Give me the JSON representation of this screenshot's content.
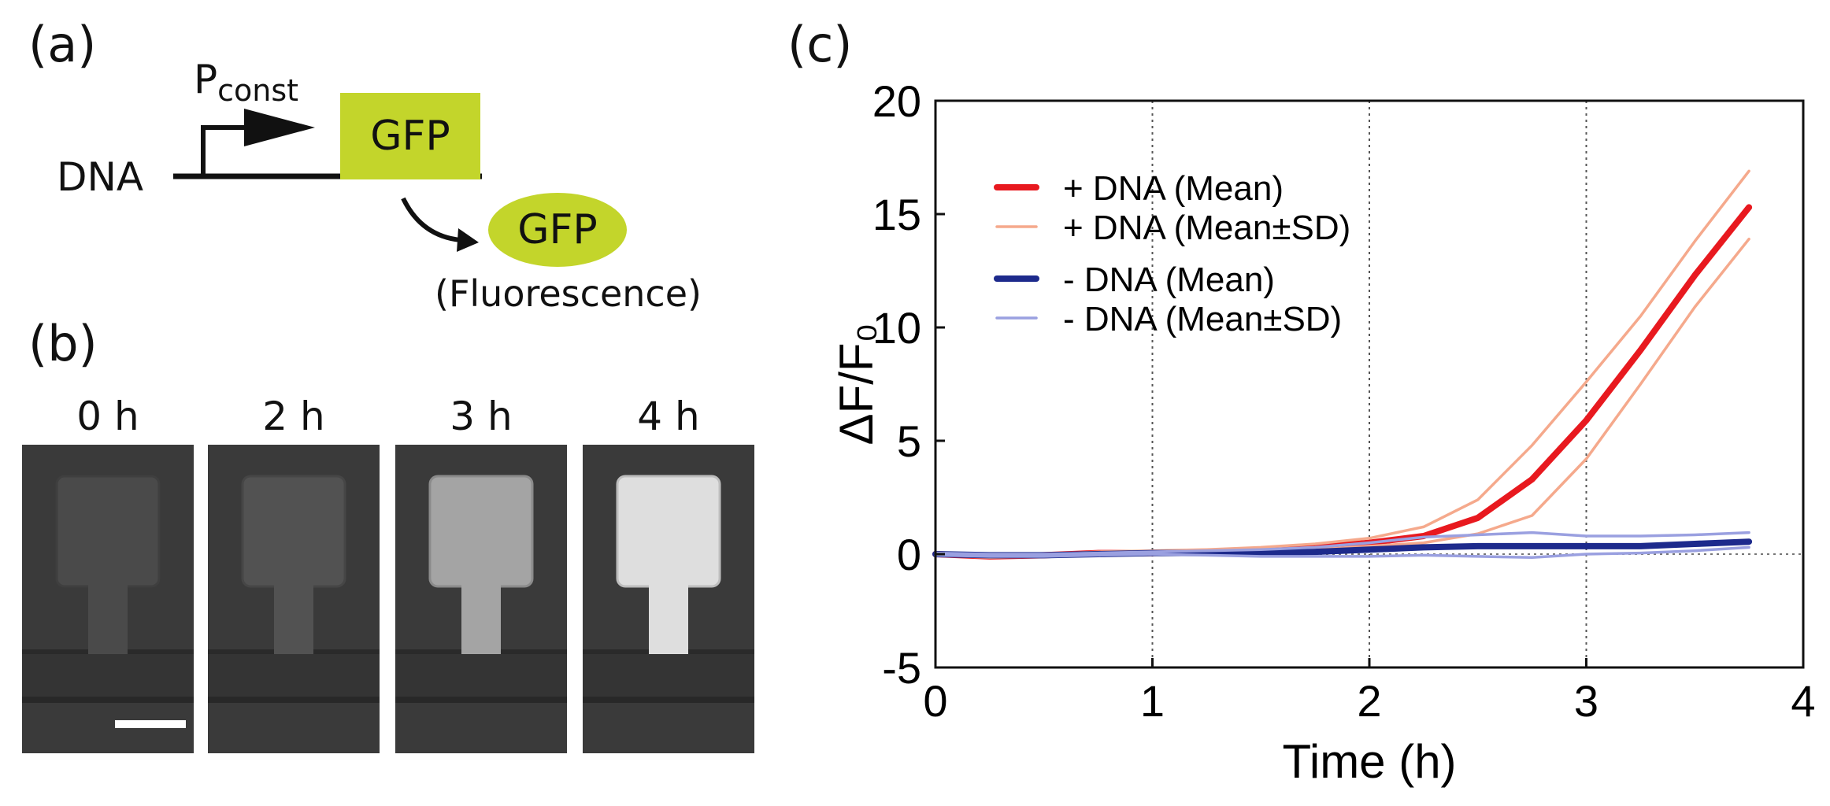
{
  "panels": {
    "a_label": "(a)",
    "b_label": "(b)",
    "c_label": "(c)"
  },
  "schematic": {
    "dna_label": "DNA",
    "promoter_p": "P",
    "promoter_sub": "const",
    "gene_label": "GFP",
    "protein_label": "GFP",
    "fluorescence_label": "(Fluorescence)",
    "gfp_color": "#c3d52b"
  },
  "micrographs": {
    "times": [
      "0 h",
      "2 h",
      "3 h",
      "4 h"
    ],
    "brightness": [
      0.0,
      0.05,
      0.55,
      0.9
    ]
  },
  "chart_data": {
    "type": "line",
    "title": "",
    "xlabel": "Time (h)",
    "ylabel": "ΔF/F₀",
    "xlim": [
      0,
      4
    ],
    "ylim": [
      -5,
      20
    ],
    "xticks": [
      "0",
      "1",
      "2",
      "3",
      "4"
    ],
    "yticks": [
      "20",
      "15",
      "10",
      "5",
      "0",
      "-5"
    ],
    "x": [
      0,
      0.25,
      0.5,
      0.75,
      1.0,
      1.25,
      1.5,
      1.75,
      2.0,
      2.25,
      2.5,
      2.75,
      3.0,
      3.25,
      3.5,
      3.75
    ],
    "series": [
      {
        "name": "+ DNA (Mean)",
        "color": "#e8191f",
        "width": 8,
        "values": [
          0,
          -0.1,
          -0.05,
          0.05,
          0.05,
          0.1,
          0.2,
          0.3,
          0.5,
          0.8,
          1.6,
          3.3,
          5.9,
          9.0,
          12.3,
          15.3
        ]
      },
      {
        "name": "+ DNA (Mean±SD)",
        "color": "#f5a98c",
        "width": 3.5,
        "values": [
          0.05,
          -0.05,
          0.0,
          0.1,
          0.15,
          0.2,
          0.3,
          0.45,
          0.7,
          1.2,
          2.4,
          4.8,
          7.6,
          10.5,
          13.8,
          16.9
        ]
      },
      {
        "name": "+ DNA (Mean±SD)",
        "color": "#f5a98c",
        "width": 3.5,
        "legend": false,
        "values": [
          -0.05,
          -0.15,
          -0.1,
          0.0,
          0.0,
          0.05,
          0.1,
          0.2,
          0.35,
          0.5,
          0.9,
          1.7,
          4.2,
          7.5,
          10.9,
          13.9
        ]
      },
      {
        "name": "- DNA (Mean)",
        "color": "#1d2a8c",
        "width": 8,
        "values": [
          0,
          -0.05,
          -0.05,
          0.0,
          0.05,
          0.05,
          0.05,
          0.1,
          0.2,
          0.3,
          0.35,
          0.35,
          0.35,
          0.35,
          0.45,
          0.55
        ]
      },
      {
        "name": "- DNA (Mean±SD)",
        "color": "#9aa0e0",
        "width": 3.5,
        "values": [
          0.05,
          0.0,
          0.0,
          0.05,
          0.1,
          0.15,
          0.2,
          0.3,
          0.5,
          0.75,
          0.85,
          0.95,
          0.8,
          0.8,
          0.85,
          0.95
        ]
      },
      {
        "name": "- DNA (Mean±SD)",
        "color": "#9aa0e0",
        "width": 3.5,
        "legend": false,
        "values": [
          -0.05,
          -0.1,
          -0.1,
          -0.05,
          0.0,
          -0.05,
          -0.1,
          -0.1,
          -0.1,
          -0.05,
          -0.1,
          -0.15,
          0.0,
          0.05,
          0.15,
          0.3
        ]
      }
    ],
    "legend": [
      {
        "label": "+ DNA (Mean)",
        "color": "#e8191f",
        "width": 8
      },
      {
        "label": "+ DNA (Mean±SD)",
        "color": "#f5a98c",
        "width": 3.5
      },
      {
        "label": "- DNA (Mean)",
        "color": "#1d2a8c",
        "width": 8
      },
      {
        "label": "- DNA (Mean±SD)",
        "color": "#9aa0e0",
        "width": 3.5
      }
    ],
    "legend_position": "top-left",
    "grid": true
  }
}
